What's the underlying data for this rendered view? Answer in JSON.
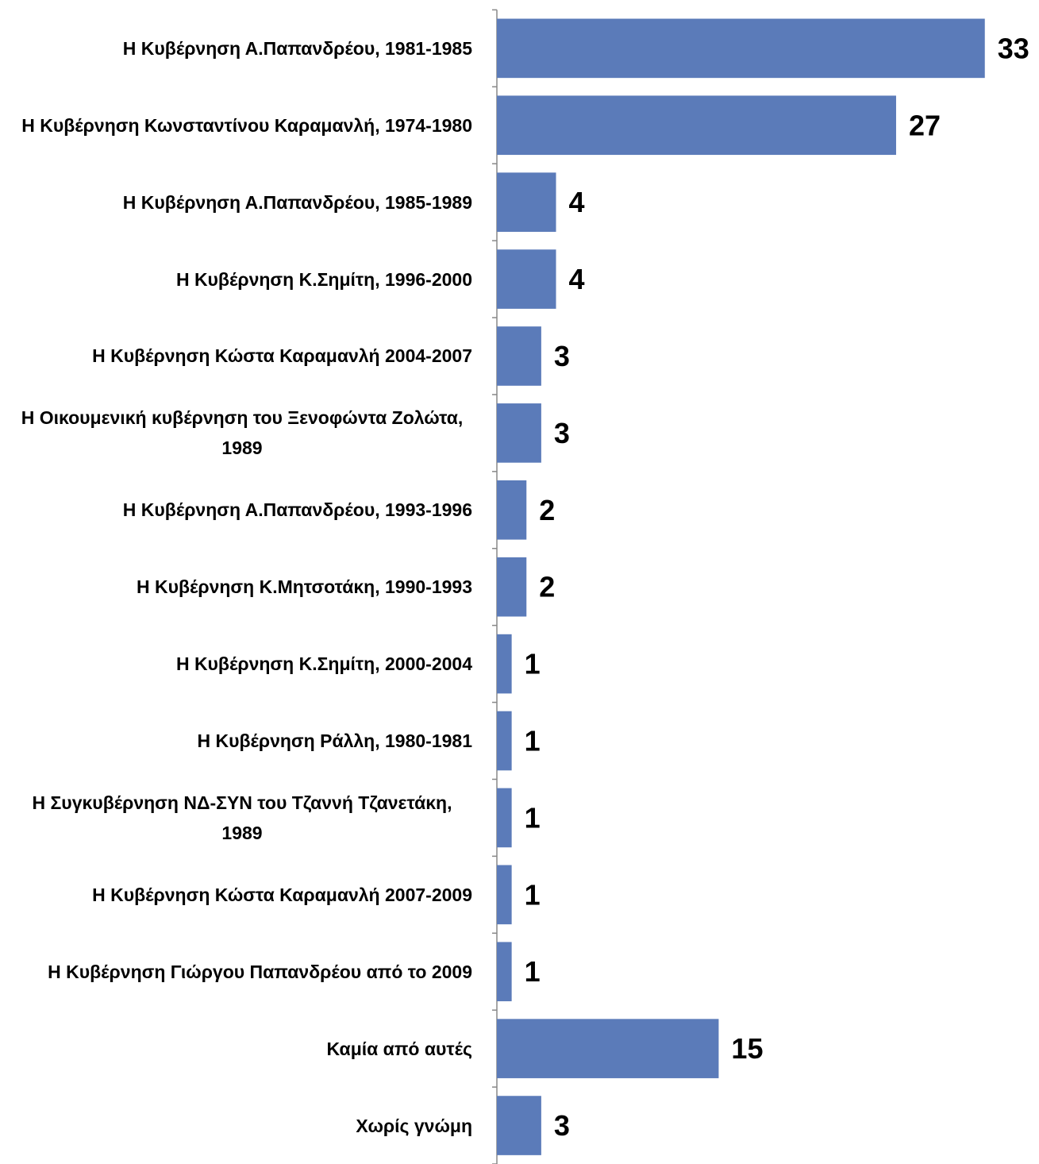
{
  "chart_data": {
    "type": "bar",
    "orientation": "horizontal",
    "categories": [
      "Η Κυβέρνηση Α.Παπανδρέου, 1981-1985",
      "Η Κυβέρνηση Κωνσταντίνου Καραμανλή, 1974-1980",
      "Η Κυβέρνηση Α.Παπανδρέου, 1985-1989",
      "Η Κυβέρνηση Κ.Σημίτη, 1996-2000",
      "Η Κυβέρνηση Κώστα Καραμανλή 2004-2007",
      "Η Οικουμενική κυβέρνηση του Ξενοφώντα Ζολώτα, 1989",
      "Η Κυβέρνηση Α.Παπανδρέου, 1993-1996",
      "Η Κυβέρνηση Κ.Μητσοτάκη, 1990-1993",
      "Η Κυβέρνηση Κ.Σημίτη, 2000-2004",
      "Η Κυβέρνηση Ράλλη, 1980-1981",
      "Η Συγκυβέρνηση ΝΔ-ΣΥΝ του Τζαννή Τζανετάκη, 1989",
      "Η Κυβέρνηση Κώστα Καραμανλή 2007-2009",
      "Η Κυβέρνηση Γιώργου Παπανδρέου από το 2009",
      "Καμία από αυτές",
      "Χωρίς γνώμη"
    ],
    "values": [
      33,
      27,
      4,
      4,
      3,
      3,
      2,
      2,
      1,
      1,
      1,
      1,
      1,
      15,
      3
    ],
    "color": "#5b7bb9",
    "xlim": [
      0,
      35
    ]
  }
}
